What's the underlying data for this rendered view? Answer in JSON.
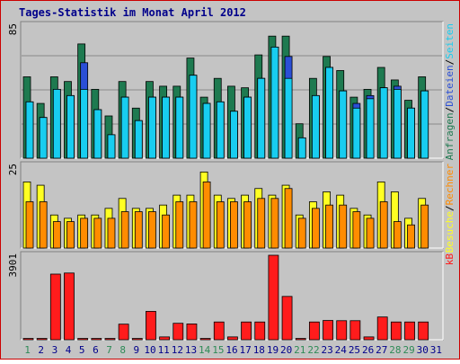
{
  "title": "Tages-Statistik im Monat April 2012",
  "colors": {
    "background": "#c4c4c4",
    "border": "#cc0000",
    "title": "#00008b",
    "anfragen": "#1e7a50",
    "dateien": "#2a4fd6",
    "seiten": "#18cdf0",
    "besuche": "#ffff22",
    "rechner": "#ff8c00",
    "kb": "#ff1c1c",
    "day_weekday": "#00008b",
    "day_weekend": "#2e8b57"
  },
  "chart_data": [
    {
      "type": "bar",
      "title": "Tages-Statistik im Monat April 2012",
      "categories": [
        "1",
        "2",
        "3",
        "4",
        "5",
        "6",
        "7",
        "8",
        "9",
        "10",
        "11",
        "12",
        "13",
        "14",
        "15",
        "16",
        "17",
        "18",
        "19",
        "20",
        "21",
        "22",
        "23",
        "24",
        "25",
        "26",
        "27",
        "28",
        "29",
        "30",
        "31"
      ],
      "weekend_days": [
        "1",
        "7",
        "8",
        "14",
        "15",
        "21",
        "22",
        "28",
        "29"
      ],
      "ymax_label": "85",
      "ylim": [
        0,
        85
      ],
      "series": [
        {
          "name": "Anfragen",
          "values": [
            52,
            35,
            52,
            49,
            73,
            44,
            27,
            49,
            32,
            49,
            46,
            46,
            64,
            39,
            51,
            46,
            45,
            66,
            78,
            78,
            22,
            51,
            65,
            56,
            39,
            44,
            58,
            50,
            37,
            52,
            0
          ]
        },
        {
          "name": "Dateien",
          "values": [
            36,
            26,
            44,
            40,
            61,
            31,
            15,
            39,
            24,
            39,
            39,
            39,
            53,
            35,
            36,
            30,
            39,
            51,
            71,
            65,
            13,
            40,
            58,
            43,
            35,
            40,
            45,
            46,
            32,
            43,
            0
          ]
        },
        {
          "name": "Seiten",
          "values": [
            36,
            26,
            44,
            40,
            44,
            31,
            15,
            39,
            24,
            39,
            39,
            39,
            53,
            35,
            36,
            30,
            39,
            51,
            71,
            51,
            13,
            40,
            58,
            43,
            32,
            38,
            45,
            44,
            32,
            43,
            0
          ]
        }
      ]
    },
    {
      "type": "bar",
      "ymax_label": "25",
      "ylim": [
        0,
        25
      ],
      "series": [
        {
          "name": "Besuche",
          "values": [
            20,
            19,
            10,
            9,
            10,
            10,
            12,
            15,
            12,
            12,
            13,
            16,
            16,
            23,
            16,
            15,
            16,
            18,
            16,
            19,
            10,
            14,
            17,
            16,
            12,
            10,
            20,
            17,
            9,
            15,
            0
          ]
        },
        {
          "name": "Rechner",
          "values": [
            14,
            14,
            8,
            8,
            9,
            9,
            9,
            11,
            11,
            11,
            10,
            14,
            14,
            20,
            14,
            14,
            14,
            15,
            15,
            18,
            9,
            12,
            13,
            13,
            11,
            9,
            14,
            8,
            7,
            13,
            0
          ]
        }
      ]
    },
    {
      "type": "bar",
      "ymax_label": "3901",
      "ylim": [
        0,
        3901
      ],
      "series": [
        {
          "name": "kB",
          "values": [
            60,
            60,
            3030,
            3080,
            60,
            60,
            60,
            720,
            60,
            1310,
            130,
            760,
            730,
            60,
            820,
            130,
            820,
            820,
            3901,
            2000,
            60,
            820,
            890,
            880,
            880,
            130,
            1050,
            820,
            820,
            820,
            0
          ]
        }
      ]
    }
  ],
  "legend_top": {
    "anfragen": "Anfragen",
    "dateien": "Dateien",
    "seiten": "Seiten",
    "sep": "/"
  },
  "legend_mid": {
    "besuche": "Besuche",
    "rechner": "Rechner",
    "sep": "/"
  },
  "legend_bottom": {
    "kb": "kB"
  }
}
